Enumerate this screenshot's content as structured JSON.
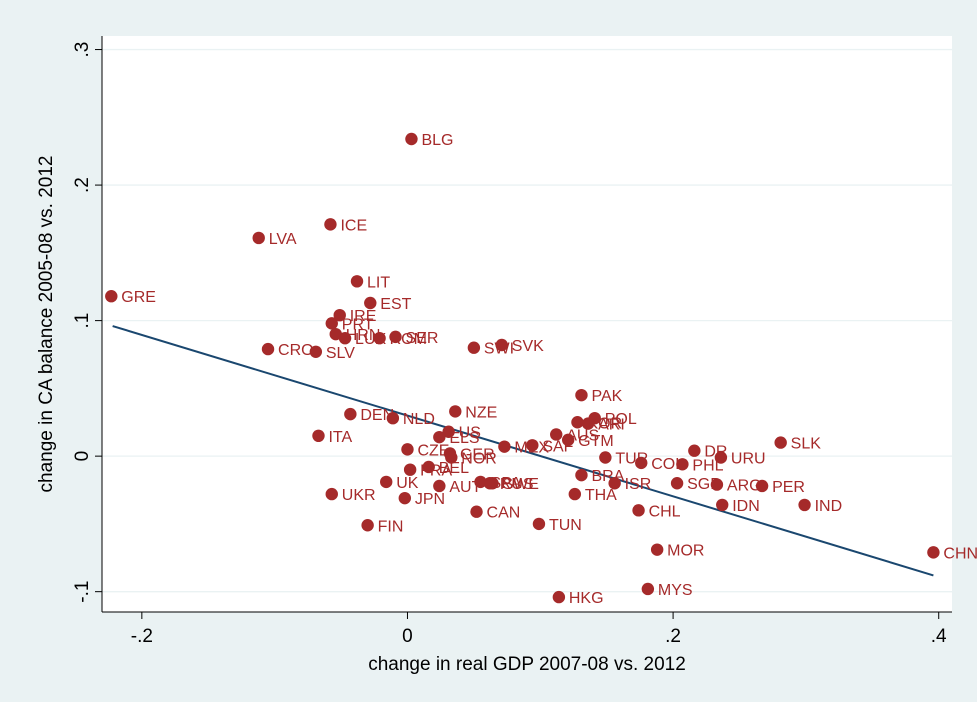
{
  "chart_data": {
    "type": "scatter",
    "title": "",
    "xlabel": "change in real GDP 2007-08 vs. 2012",
    "ylabel": "change in CA balance 2005-08 vs. 2012",
    "xlim": [
      -0.23,
      0.41
    ],
    "ylim": [
      -0.115,
      0.31
    ],
    "x_ticks": [
      {
        "value": -0.2,
        "label": "-.2"
      },
      {
        "value": 0,
        "label": "0"
      },
      {
        "value": 0.2,
        "label": ".2"
      },
      {
        "value": 0.4,
        "label": ".4"
      }
    ],
    "y_ticks": [
      {
        "value": -0.1,
        "label": "-.1"
      },
      {
        "value": 0,
        "label": "0"
      },
      {
        "value": 0.1,
        "label": ".1"
      },
      {
        "value": 0.2,
        "label": ".2"
      },
      {
        "value": 0.3,
        "label": ".3"
      }
    ],
    "grid": true,
    "legend": "none",
    "point_color": "#a52a2a",
    "label_color": "#a52a2a",
    "fit_line_color": "#1a476f",
    "fit_line": {
      "x": [
        -0.222,
        0.396
      ],
      "y": [
        0.096,
        -0.088
      ]
    },
    "points": [
      {
        "label": "BLG",
        "x": 0.003,
        "y": 0.234
      },
      {
        "label": "ICE",
        "x": -0.058,
        "y": 0.171
      },
      {
        "label": "LVA",
        "x": -0.112,
        "y": 0.161
      },
      {
        "label": "LIT",
        "x": -0.038,
        "y": 0.129
      },
      {
        "label": "GRE",
        "x": -0.223,
        "y": 0.118
      },
      {
        "label": "EST",
        "x": -0.028,
        "y": 0.113
      },
      {
        "label": "IRE",
        "x": -0.051,
        "y": 0.104
      },
      {
        "label": "PRT",
        "x": -0.057,
        "y": 0.098
      },
      {
        "label": "HRN",
        "x": -0.054,
        "y": 0.09
      },
      {
        "label": "LUX",
        "x": -0.047,
        "y": 0.087
      },
      {
        "label": "ROM",
        "x": -0.021,
        "y": 0.087
      },
      {
        "label": "SER",
        "x": -0.009,
        "y": 0.088
      },
      {
        "label": "CRO",
        "x": -0.105,
        "y": 0.079
      },
      {
        "label": "SLV",
        "x": -0.069,
        "y": 0.077
      },
      {
        "label": "SWI",
        "x": 0.05,
        "y": 0.08
      },
      {
        "label": "SVK",
        "x": 0.071,
        "y": 0.082
      },
      {
        "label": "PAK",
        "x": 0.131,
        "y": 0.045
      },
      {
        "label": "DEN",
        "x": -0.043,
        "y": 0.031
      },
      {
        "label": "NLD",
        "x": -0.011,
        "y": 0.028
      },
      {
        "label": "NZE",
        "x": 0.036,
        "y": 0.033
      },
      {
        "label": "POL",
        "x": 0.141,
        "y": 0.028
      },
      {
        "label": "KOR",
        "x": 0.128,
        "y": 0.025
      },
      {
        "label": "ARI",
        "x": 0.136,
        "y": 0.024
      },
      {
        "label": "ITA",
        "x": -0.067,
        "y": 0.015
      },
      {
        "label": "US",
        "x": 0.031,
        "y": 0.018
      },
      {
        "label": "ELS",
        "x": 0.024,
        "y": 0.014
      },
      {
        "label": "AUS",
        "x": 0.112,
        "y": 0.016
      },
      {
        "label": "GTM",
        "x": 0.121,
        "y": 0.012
      },
      {
        "label": "SLK",
        "x": 0.281,
        "y": 0.01
      },
      {
        "label": "CZE",
        "x": 0.0,
        "y": 0.005
      },
      {
        "label": "MEX",
        "x": 0.073,
        "y": 0.007
      },
      {
        "label": "SAF",
        "x": 0.094,
        "y": 0.008
      },
      {
        "label": "DR",
        "x": 0.216,
        "y": 0.004
      },
      {
        "label": "GER",
        "x": 0.032,
        "y": 0.002
      },
      {
        "label": "NOR",
        "x": 0.033,
        "y": -0.001
      },
      {
        "label": "URU",
        "x": 0.236,
        "y": -0.001
      },
      {
        "label": "TUR",
        "x": 0.149,
        "y": -0.001
      },
      {
        "label": "COL",
        "x": 0.176,
        "y": -0.005
      },
      {
        "label": "PHL",
        "x": 0.207,
        "y": -0.006
      },
      {
        "label": "BEL",
        "x": 0.016,
        "y": -0.008
      },
      {
        "label": "FRA",
        "x": 0.002,
        "y": -0.01
      },
      {
        "label": "BRA",
        "x": 0.131,
        "y": -0.014
      },
      {
        "label": "UK",
        "x": -0.016,
        "y": -0.019
      },
      {
        "label": "SPA",
        "x": 0.055,
        "y": -0.019
      },
      {
        "label": "SWE",
        "x": 0.064,
        "y": -0.02
      },
      {
        "label": "RUS",
        "x": 0.062,
        "y": -0.02
      },
      {
        "label": "ISR",
        "x": 0.156,
        "y": -0.02
      },
      {
        "label": "SGP",
        "x": 0.203,
        "y": -0.02
      },
      {
        "label": "ARG",
        "x": 0.233,
        "y": -0.021
      },
      {
        "label": "PER",
        "x": 0.267,
        "y": -0.022
      },
      {
        "label": "AUT",
        "x": 0.024,
        "y": -0.022
      },
      {
        "label": "UKR",
        "x": -0.057,
        "y": -0.028
      },
      {
        "label": "THA",
        "x": 0.126,
        "y": -0.028
      },
      {
        "label": "JPN",
        "x": -0.002,
        "y": -0.031
      },
      {
        "label": "IDN",
        "x": 0.237,
        "y": -0.036
      },
      {
        "label": "IND",
        "x": 0.299,
        "y": -0.036
      },
      {
        "label": "CHL",
        "x": 0.174,
        "y": -0.04
      },
      {
        "label": "CAN",
        "x": 0.052,
        "y": -0.041
      },
      {
        "label": "TUN",
        "x": 0.099,
        "y": -0.05
      },
      {
        "label": "FIN",
        "x": -0.03,
        "y": -0.051
      },
      {
        "label": "MOR",
        "x": 0.188,
        "y": -0.069
      },
      {
        "label": "CHN",
        "x": 0.396,
        "y": -0.071
      },
      {
        "label": "MYS",
        "x": 0.181,
        "y": -0.098
      },
      {
        "label": "HKG",
        "x": 0.114,
        "y": -0.104
      }
    ]
  }
}
